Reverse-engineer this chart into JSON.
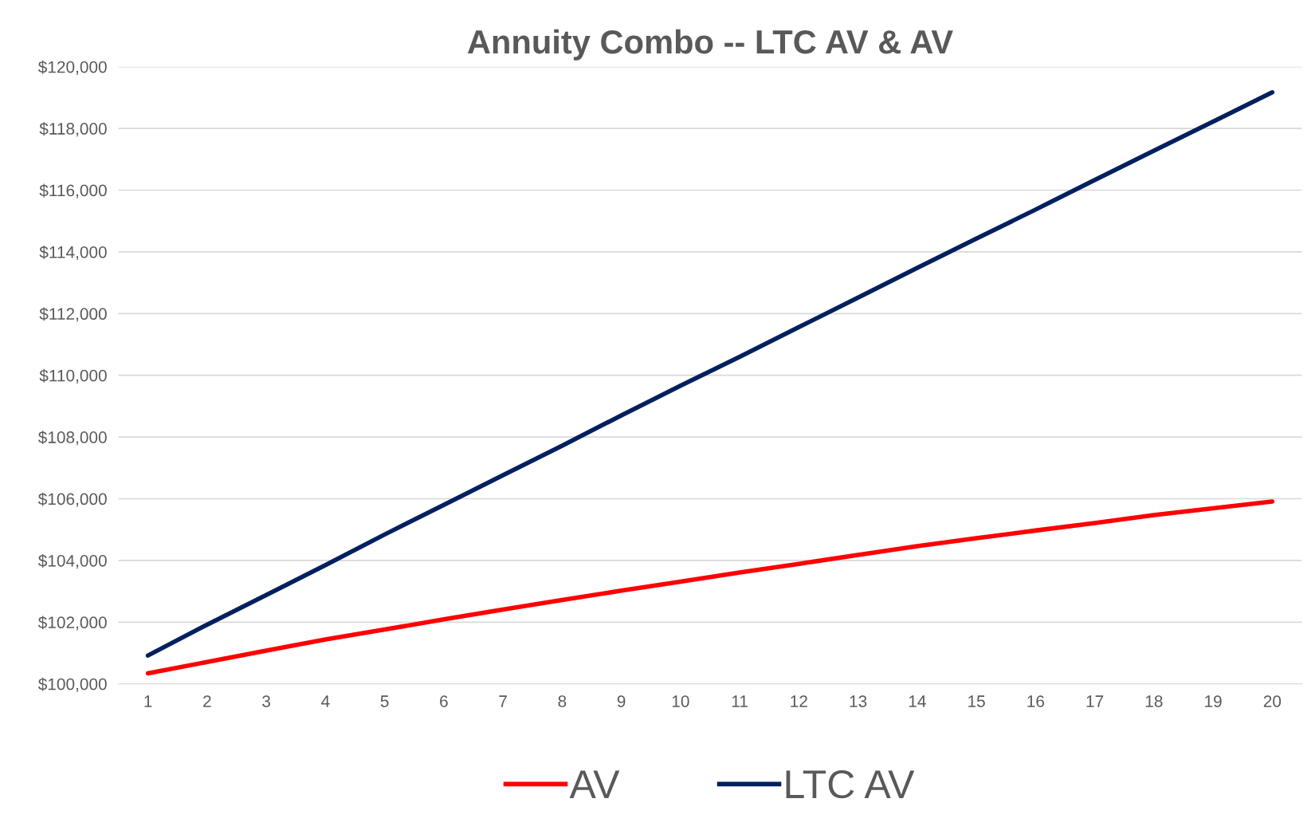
{
  "chart_data": {
    "type": "line",
    "title": "Annuity Combo -- LTC AV & AV",
    "categories": [
      "1",
      "2",
      "3",
      "4",
      "5",
      "6",
      "7",
      "8",
      "9",
      "10",
      "11",
      "12",
      "13",
      "14",
      "15",
      "16",
      "17",
      "18",
      "19",
      "20"
    ],
    "series": [
      {
        "name": "AV",
        "color": "#ff0000",
        "values": [
          100340,
          100710,
          101080,
          101440,
          101760,
          102090,
          102410,
          102720,
          103020,
          103310,
          103610,
          103890,
          104180,
          104460,
          104720,
          104970,
          105210,
          105470,
          105690,
          105910
        ]
      },
      {
        "name": "LTC AV",
        "color": "#002060",
        "values": [
          100920,
          101920,
          102880,
          103850,
          104840,
          105800,
          106760,
          107720,
          108700,
          109660,
          110600,
          111560,
          112520,
          113480,
          114430,
          115370,
          116330,
          117280,
          118220,
          119170
        ]
      }
    ],
    "ylim": [
      100000,
      120000
    ],
    "yticks": [
      {
        "value": 100000,
        "label": "$100,000"
      },
      {
        "value": 102000,
        "label": "$102,000"
      },
      {
        "value": 104000,
        "label": "$104,000"
      },
      {
        "value": 106000,
        "label": "$106,000"
      },
      {
        "value": 108000,
        "label": "$108,000"
      },
      {
        "value": 110000,
        "label": "$110,000"
      },
      {
        "value": 112000,
        "label": "$112,000"
      },
      {
        "value": 114000,
        "label": "$114,000"
      },
      {
        "value": 116000,
        "label": "$116,000"
      },
      {
        "value": 118000,
        "label": "$118,000"
      },
      {
        "value": 120000,
        "label": "$120,000"
      }
    ],
    "grid": "y",
    "legend": "bottom",
    "marker": "none",
    "line_style": "solid"
  }
}
